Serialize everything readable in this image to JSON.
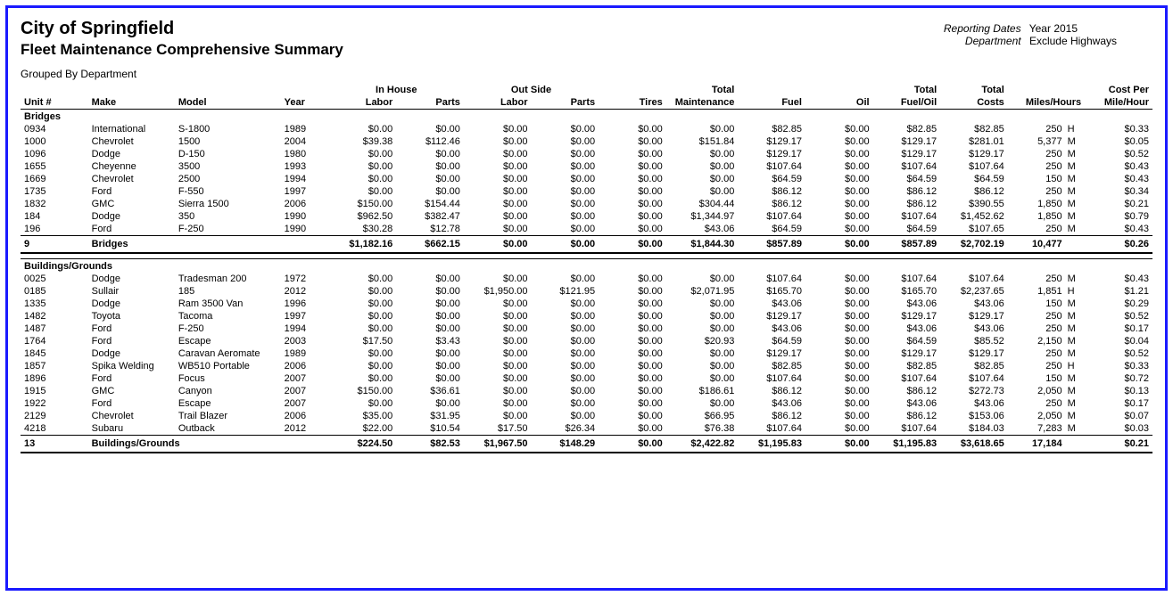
{
  "header": {
    "org": "City of Springfield",
    "report": "Fleet Maintenance Comprehensive Summary",
    "grouped_by": "Grouped By Department",
    "meta": {
      "dates_label": "Reporting Dates",
      "dates_value": "Year 2015",
      "dept_label": "Department",
      "dept_value": "Exclude Highways"
    }
  },
  "columns": {
    "super_inhouse": "In House",
    "super_outside": "Out Side",
    "super_total_maint": "Total",
    "super_total_fueloil": "Total",
    "super_total_costs": "Total",
    "super_costper": "Cost Per",
    "unit": "Unit #",
    "make": "Make",
    "model": "Model",
    "year": "Year",
    "ih_labor": "Labor",
    "ih_parts": "Parts",
    "os_labor": "Labor",
    "os_parts": "Parts",
    "tires": "Tires",
    "total_maint": "Maintenance",
    "fuel": "Fuel",
    "oil": "Oil",
    "total_fueloil": "Fuel/Oil",
    "total_costs": "Costs",
    "miles_hours": "Miles/Hours",
    "cost_per": "Mile/Hour"
  },
  "groups": [
    {
      "name": "Bridges",
      "rows": [
        {
          "unit": "0934",
          "make": "International",
          "model": "S-1800",
          "year": "1989",
          "ih_labor": "$0.00",
          "ih_parts": "$0.00",
          "os_labor": "$0.00",
          "os_parts": "$0.00",
          "tires": "$0.00",
          "total_maint": "$0.00",
          "fuel": "$82.85",
          "oil": "$0.00",
          "total_fueloil": "$82.85",
          "total_costs": "$82.85",
          "miles": "250",
          "u": "H",
          "cost_per": "$0.33"
        },
        {
          "unit": "1000",
          "make": "Chevrolet",
          "model": "1500",
          "year": "2004",
          "ih_labor": "$39.38",
          "ih_parts": "$112.46",
          "os_labor": "$0.00",
          "os_parts": "$0.00",
          "tires": "$0.00",
          "total_maint": "$151.84",
          "fuel": "$129.17",
          "oil": "$0.00",
          "total_fueloil": "$129.17",
          "total_costs": "$281.01",
          "miles": "5,377",
          "u": "M",
          "cost_per": "$0.05"
        },
        {
          "unit": "1096",
          "make": "Dodge",
          "model": "D-150",
          "year": "1980",
          "ih_labor": "$0.00",
          "ih_parts": "$0.00",
          "os_labor": "$0.00",
          "os_parts": "$0.00",
          "tires": "$0.00",
          "total_maint": "$0.00",
          "fuel": "$129.17",
          "oil": "$0.00",
          "total_fueloil": "$129.17",
          "total_costs": "$129.17",
          "miles": "250",
          "u": "M",
          "cost_per": "$0.52"
        },
        {
          "unit": "1655",
          "make": "Cheyenne",
          "model": "3500",
          "year": "1993",
          "ih_labor": "$0.00",
          "ih_parts": "$0.00",
          "os_labor": "$0.00",
          "os_parts": "$0.00",
          "tires": "$0.00",
          "total_maint": "$0.00",
          "fuel": "$107.64",
          "oil": "$0.00",
          "total_fueloil": "$107.64",
          "total_costs": "$107.64",
          "miles": "250",
          "u": "M",
          "cost_per": "$0.43"
        },
        {
          "unit": "1669",
          "make": "Chevrolet",
          "model": "2500",
          "year": "1994",
          "ih_labor": "$0.00",
          "ih_parts": "$0.00",
          "os_labor": "$0.00",
          "os_parts": "$0.00",
          "tires": "$0.00",
          "total_maint": "$0.00",
          "fuel": "$64.59",
          "oil": "$0.00",
          "total_fueloil": "$64.59",
          "total_costs": "$64.59",
          "miles": "150",
          "u": "M",
          "cost_per": "$0.43"
        },
        {
          "unit": "1735",
          "make": "Ford",
          "model": "F-550",
          "year": "1997",
          "ih_labor": "$0.00",
          "ih_parts": "$0.00",
          "os_labor": "$0.00",
          "os_parts": "$0.00",
          "tires": "$0.00",
          "total_maint": "$0.00",
          "fuel": "$86.12",
          "oil": "$0.00",
          "total_fueloil": "$86.12",
          "total_costs": "$86.12",
          "miles": "250",
          "u": "M",
          "cost_per": "$0.34"
        },
        {
          "unit": "1832",
          "make": "GMC",
          "model": "Sierra 1500",
          "year": "2006",
          "ih_labor": "$150.00",
          "ih_parts": "$154.44",
          "os_labor": "$0.00",
          "os_parts": "$0.00",
          "tires": "$0.00",
          "total_maint": "$304.44",
          "fuel": "$86.12",
          "oil": "$0.00",
          "total_fueloil": "$86.12",
          "total_costs": "$390.55",
          "miles": "1,850",
          "u": "M",
          "cost_per": "$0.21"
        },
        {
          "unit": "184",
          "make": "Dodge",
          "model": "350",
          "year": "1990",
          "ih_labor": "$962.50",
          "ih_parts": "$382.47",
          "os_labor": "$0.00",
          "os_parts": "$0.00",
          "tires": "$0.00",
          "total_maint": "$1,344.97",
          "fuel": "$107.64",
          "oil": "$0.00",
          "total_fueloil": "$107.64",
          "total_costs": "$1,452.62",
          "miles": "1,850",
          "u": "M",
          "cost_per": "$0.79"
        },
        {
          "unit": "196",
          "make": "Ford",
          "model": "F-250",
          "year": "1990",
          "ih_labor": "$30.28",
          "ih_parts": "$12.78",
          "os_labor": "$0.00",
          "os_parts": "$0.00",
          "tires": "$0.00",
          "total_maint": "$43.06",
          "fuel": "$64.59",
          "oil": "$0.00",
          "total_fueloil": "$64.59",
          "total_costs": "$107.65",
          "miles": "250",
          "u": "M",
          "cost_per": "$0.43"
        }
      ],
      "total": {
        "count": "9",
        "name": "Bridges",
        "ih_labor": "$1,182.16",
        "ih_parts": "$662.15",
        "os_labor": "$0.00",
        "os_parts": "$0.00",
        "tires": "$0.00",
        "total_maint": "$1,844.30",
        "fuel": "$857.89",
        "oil": "$0.00",
        "total_fueloil": "$857.89",
        "total_costs": "$2,702.19",
        "miles": "10,477",
        "u": "",
        "cost_per": "$0.26"
      }
    },
    {
      "name": "Buildings/Grounds",
      "rows": [
        {
          "unit": "0025",
          "make": "Dodge",
          "model": "Tradesman 200",
          "year": "1972",
          "ih_labor": "$0.00",
          "ih_parts": "$0.00",
          "os_labor": "$0.00",
          "os_parts": "$0.00",
          "tires": "$0.00",
          "total_maint": "$0.00",
          "fuel": "$107.64",
          "oil": "$0.00",
          "total_fueloil": "$107.64",
          "total_costs": "$107.64",
          "miles": "250",
          "u": "M",
          "cost_per": "$0.43"
        },
        {
          "unit": "0185",
          "make": "Sullair",
          "model": "185",
          "year": "2012",
          "ih_labor": "$0.00",
          "ih_parts": "$0.00",
          "os_labor": "$1,950.00",
          "os_parts": "$121.95",
          "tires": "$0.00",
          "total_maint": "$2,071.95",
          "fuel": "$165.70",
          "oil": "$0.00",
          "total_fueloil": "$165.70",
          "total_costs": "$2,237.65",
          "miles": "1,851",
          "u": "H",
          "cost_per": "$1.21"
        },
        {
          "unit": "1335",
          "make": "Dodge",
          "model": "Ram 3500 Van",
          "year": "1996",
          "ih_labor": "$0.00",
          "ih_parts": "$0.00",
          "os_labor": "$0.00",
          "os_parts": "$0.00",
          "tires": "$0.00",
          "total_maint": "$0.00",
          "fuel": "$43.06",
          "oil": "$0.00",
          "total_fueloil": "$43.06",
          "total_costs": "$43.06",
          "miles": "150",
          "u": "M",
          "cost_per": "$0.29"
        },
        {
          "unit": "1482",
          "make": "Toyota",
          "model": "Tacoma",
          "year": "1997",
          "ih_labor": "$0.00",
          "ih_parts": "$0.00",
          "os_labor": "$0.00",
          "os_parts": "$0.00",
          "tires": "$0.00",
          "total_maint": "$0.00",
          "fuel": "$129.17",
          "oil": "$0.00",
          "total_fueloil": "$129.17",
          "total_costs": "$129.17",
          "miles": "250",
          "u": "M",
          "cost_per": "$0.52"
        },
        {
          "unit": "1487",
          "make": "Ford",
          "model": "F-250",
          "year": "1994",
          "ih_labor": "$0.00",
          "ih_parts": "$0.00",
          "os_labor": "$0.00",
          "os_parts": "$0.00",
          "tires": "$0.00",
          "total_maint": "$0.00",
          "fuel": "$43.06",
          "oil": "$0.00",
          "total_fueloil": "$43.06",
          "total_costs": "$43.06",
          "miles": "250",
          "u": "M",
          "cost_per": "$0.17"
        },
        {
          "unit": "1764",
          "make": "Ford",
          "model": "Escape",
          "year": "2003",
          "ih_labor": "$17.50",
          "ih_parts": "$3.43",
          "os_labor": "$0.00",
          "os_parts": "$0.00",
          "tires": "$0.00",
          "total_maint": "$20.93",
          "fuel": "$64.59",
          "oil": "$0.00",
          "total_fueloil": "$64.59",
          "total_costs": "$85.52",
          "miles": "2,150",
          "u": "M",
          "cost_per": "$0.04"
        },
        {
          "unit": "1845",
          "make": "Dodge",
          "model": "Caravan Aeromate",
          "year": "1989",
          "ih_labor": "$0.00",
          "ih_parts": "$0.00",
          "os_labor": "$0.00",
          "os_parts": "$0.00",
          "tires": "$0.00",
          "total_maint": "$0.00",
          "fuel": "$129.17",
          "oil": "$0.00",
          "total_fueloil": "$129.17",
          "total_costs": "$129.17",
          "miles": "250",
          "u": "M",
          "cost_per": "$0.52"
        },
        {
          "unit": "1857",
          "make": "Spika Welding",
          "model": "WB510 Portable",
          "year": "2006",
          "ih_labor": "$0.00",
          "ih_parts": "$0.00",
          "os_labor": "$0.00",
          "os_parts": "$0.00",
          "tires": "$0.00",
          "total_maint": "$0.00",
          "fuel": "$82.85",
          "oil": "$0.00",
          "total_fueloil": "$82.85",
          "total_costs": "$82.85",
          "miles": "250",
          "u": "H",
          "cost_per": "$0.33"
        },
        {
          "unit": "1896",
          "make": "Ford",
          "model": "Focus",
          "year": "2007",
          "ih_labor": "$0.00",
          "ih_parts": "$0.00",
          "os_labor": "$0.00",
          "os_parts": "$0.00",
          "tires": "$0.00",
          "total_maint": "$0.00",
          "fuel": "$107.64",
          "oil": "$0.00",
          "total_fueloil": "$107.64",
          "total_costs": "$107.64",
          "miles": "150",
          "u": "M",
          "cost_per": "$0.72"
        },
        {
          "unit": "1915",
          "make": "GMC",
          "model": "Canyon",
          "year": "2007",
          "ih_labor": "$150.00",
          "ih_parts": "$36.61",
          "os_labor": "$0.00",
          "os_parts": "$0.00",
          "tires": "$0.00",
          "total_maint": "$186.61",
          "fuel": "$86.12",
          "oil": "$0.00",
          "total_fueloil": "$86.12",
          "total_costs": "$272.73",
          "miles": "2,050",
          "u": "M",
          "cost_per": "$0.13"
        },
        {
          "unit": "1922",
          "make": "Ford",
          "model": "Escape",
          "year": "2007",
          "ih_labor": "$0.00",
          "ih_parts": "$0.00",
          "os_labor": "$0.00",
          "os_parts": "$0.00",
          "tires": "$0.00",
          "total_maint": "$0.00",
          "fuel": "$43.06",
          "oil": "$0.00",
          "total_fueloil": "$43.06",
          "total_costs": "$43.06",
          "miles": "250",
          "u": "M",
          "cost_per": "$0.17"
        },
        {
          "unit": "2129",
          "make": "Chevrolet",
          "model": "Trail Blazer",
          "year": "2006",
          "ih_labor": "$35.00",
          "ih_parts": "$31.95",
          "os_labor": "$0.00",
          "os_parts": "$0.00",
          "tires": "$0.00",
          "total_maint": "$66.95",
          "fuel": "$86.12",
          "oil": "$0.00",
          "total_fueloil": "$86.12",
          "total_costs": "$153.06",
          "miles": "2,050",
          "u": "M",
          "cost_per": "$0.07"
        },
        {
          "unit": "4218",
          "make": "Subaru",
          "model": "Outback",
          "year": "2012",
          "ih_labor": "$22.00",
          "ih_parts": "$10.54",
          "os_labor": "$17.50",
          "os_parts": "$26.34",
          "tires": "$0.00",
          "total_maint": "$76.38",
          "fuel": "$107.64",
          "oil": "$0.00",
          "total_fueloil": "$107.64",
          "total_costs": "$184.03",
          "miles": "7,283",
          "u": "M",
          "cost_per": "$0.03"
        }
      ],
      "total": {
        "count": "13",
        "name": "Buildings/Grounds",
        "ih_labor": "$224.50",
        "ih_parts": "$82.53",
        "os_labor": "$1,967.50",
        "os_parts": "$148.29",
        "tires": "$0.00",
        "total_maint": "$2,422.82",
        "fuel": "$1,195.83",
        "oil": "$0.00",
        "total_fueloil": "$1,195.83",
        "total_costs": "$3,618.65",
        "miles": "17,184",
        "u": "",
        "cost_per": "$0.21"
      }
    }
  ],
  "style": {
    "border_color": "#1a1aff",
    "text_color": "#000000",
    "background": "#ffffff",
    "font_family": "Arial",
    "title_fontsize": 20,
    "subtitle_fontsize": 17,
    "body_fontsize": 11
  }
}
